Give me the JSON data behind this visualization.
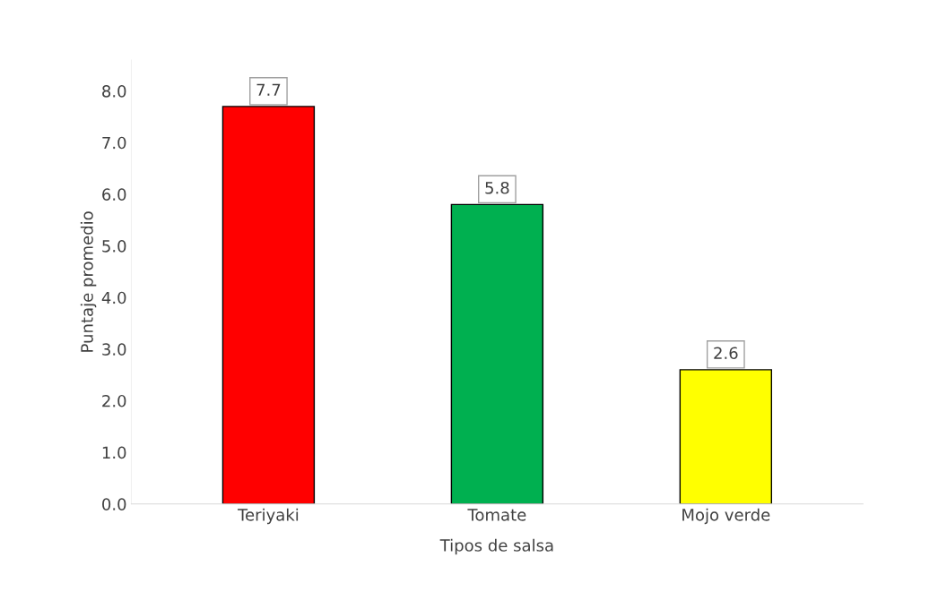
{
  "chart_data": {
    "type": "bar",
    "xlabel": "Tipos de salsa",
    "ylabel": "Puntaje promedio",
    "categories": [
      "Teriyaki",
      "Tomate",
      "Mojo verde"
    ],
    "values": [
      7.7,
      5.8,
      2.6
    ],
    "colors": [
      "#ff0000",
      "#00b050",
      "#ffff00"
    ],
    "ylim": [
      0,
      8.6
    ],
    "yticks": [
      {
        "value": 0,
        "label": "0.0"
      },
      {
        "value": 1,
        "label": "1.0"
      },
      {
        "value": 2,
        "label": "2.0"
      },
      {
        "value": 3,
        "label": "3.0"
      },
      {
        "value": 4,
        "label": "4.0"
      },
      {
        "value": 5,
        "label": "5.0"
      },
      {
        "value": 6,
        "label": "6.0"
      },
      {
        "value": 7,
        "label": "7.0"
      },
      {
        "value": 8,
        "label": "8.0"
      }
    ],
    "data_labels": true,
    "grid": false
  }
}
